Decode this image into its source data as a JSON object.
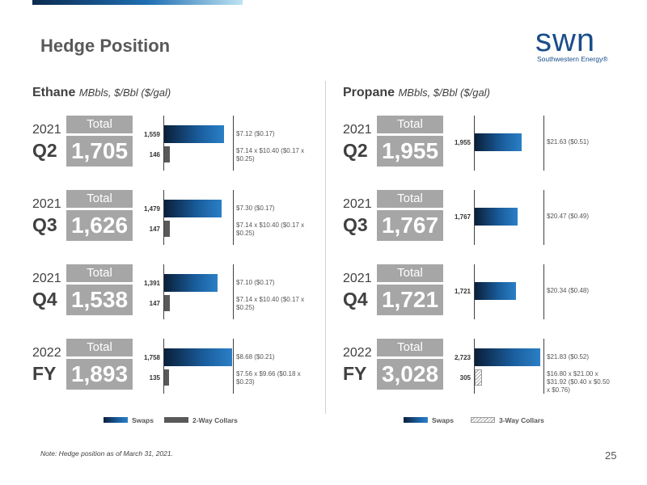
{
  "title": "Hedge Position",
  "logo": {
    "word": "swn",
    "sub": "Southwestern Energy®"
  },
  "legend_labels": {
    "swaps": "Swaps",
    "two_way": "2-Way Collars",
    "three_way": "3-Way Collars"
  },
  "total_label": "Total",
  "note": "Note: Hedge position as of March 31, 2021.",
  "page_number": "25",
  "colors": {
    "swap_dark": "#0a1f3a",
    "swap_light": "#2b7fc6",
    "collar": "#595959",
    "total_box": "#a6a6a6"
  },
  "chart_data": [
    {
      "type": "bar",
      "title": "Ethane",
      "units": "MBbls, $/Bbl ($/gal)",
      "categories": [
        "2021 Q2",
        "2021 Q3",
        "2021 Q4",
        "2022 FY"
      ],
      "periods": [
        {
          "year": "2021",
          "quarter": "Q2",
          "total": "1,705"
        },
        {
          "year": "2021",
          "quarter": "Q3",
          "total": "1,626"
        },
        {
          "year": "2021",
          "quarter": "Q4",
          "total": "1,538"
        },
        {
          "year": "2022",
          "quarter": "FY",
          "total": "1,893"
        }
      ],
      "series": [
        {
          "name": "Swaps",
          "values": [
            1559,
            1479,
            1391,
            1758
          ],
          "labels": [
            "1,559",
            "1,479",
            "1,391",
            "1,758"
          ],
          "prices": [
            "$7.12 ($0.17)",
            "$7.30 ($0.17)",
            "$7.10 ($0.17)",
            "$8.68 ($0.21)"
          ]
        },
        {
          "name": "2-Way Collars",
          "values": [
            146,
            147,
            147,
            135
          ],
          "labels": [
            "146",
            "147",
            "147",
            "135"
          ],
          "prices": [
            "$7.14 x $10.40 ($0.17 x $0.25)",
            "$7.14 x $10.40 ($0.17 x $0.25)",
            "$7.14 x $10.40 ($0.17 x $0.25)",
            "$7.56 x $9.66 ($0.18 x $0.23)"
          ]
        }
      ],
      "xlim": [
        0,
        1758
      ]
    },
    {
      "type": "bar",
      "title": "Propane",
      "units": "MBbls, $/Bbl ($/gal)",
      "categories": [
        "2021 Q2",
        "2021 Q3",
        "2021 Q4",
        "2022 FY"
      ],
      "periods": [
        {
          "year": "2021",
          "quarter": "Q2",
          "total": "1,955"
        },
        {
          "year": "2021",
          "quarter": "Q3",
          "total": "1,767"
        },
        {
          "year": "2021",
          "quarter": "Q4",
          "total": "1,721"
        },
        {
          "year": "2022",
          "quarter": "FY",
          "total": "3,028"
        }
      ],
      "series": [
        {
          "name": "Swaps",
          "values": [
            1955,
            1767,
            1721,
            2723
          ],
          "labels": [
            "1,955",
            "1,767",
            "1,721",
            "2,723"
          ],
          "prices": [
            "$21.63 ($0.51)",
            "$20.47 ($0.49)",
            "$20.34 ($0.48)",
            "$21.83 ($0.52)"
          ]
        },
        {
          "name": "3-Way Collars",
          "values": [
            null,
            null,
            null,
            305
          ],
          "labels": [
            "",
            "",
            "",
            "305"
          ],
          "prices": [
            "",
            "",
            "",
            "$16.80 x $21.00 x $31.92 ($0.40 x $0.50 x $0.76)"
          ]
        }
      ],
      "xlim": [
        0,
        2723
      ]
    }
  ]
}
